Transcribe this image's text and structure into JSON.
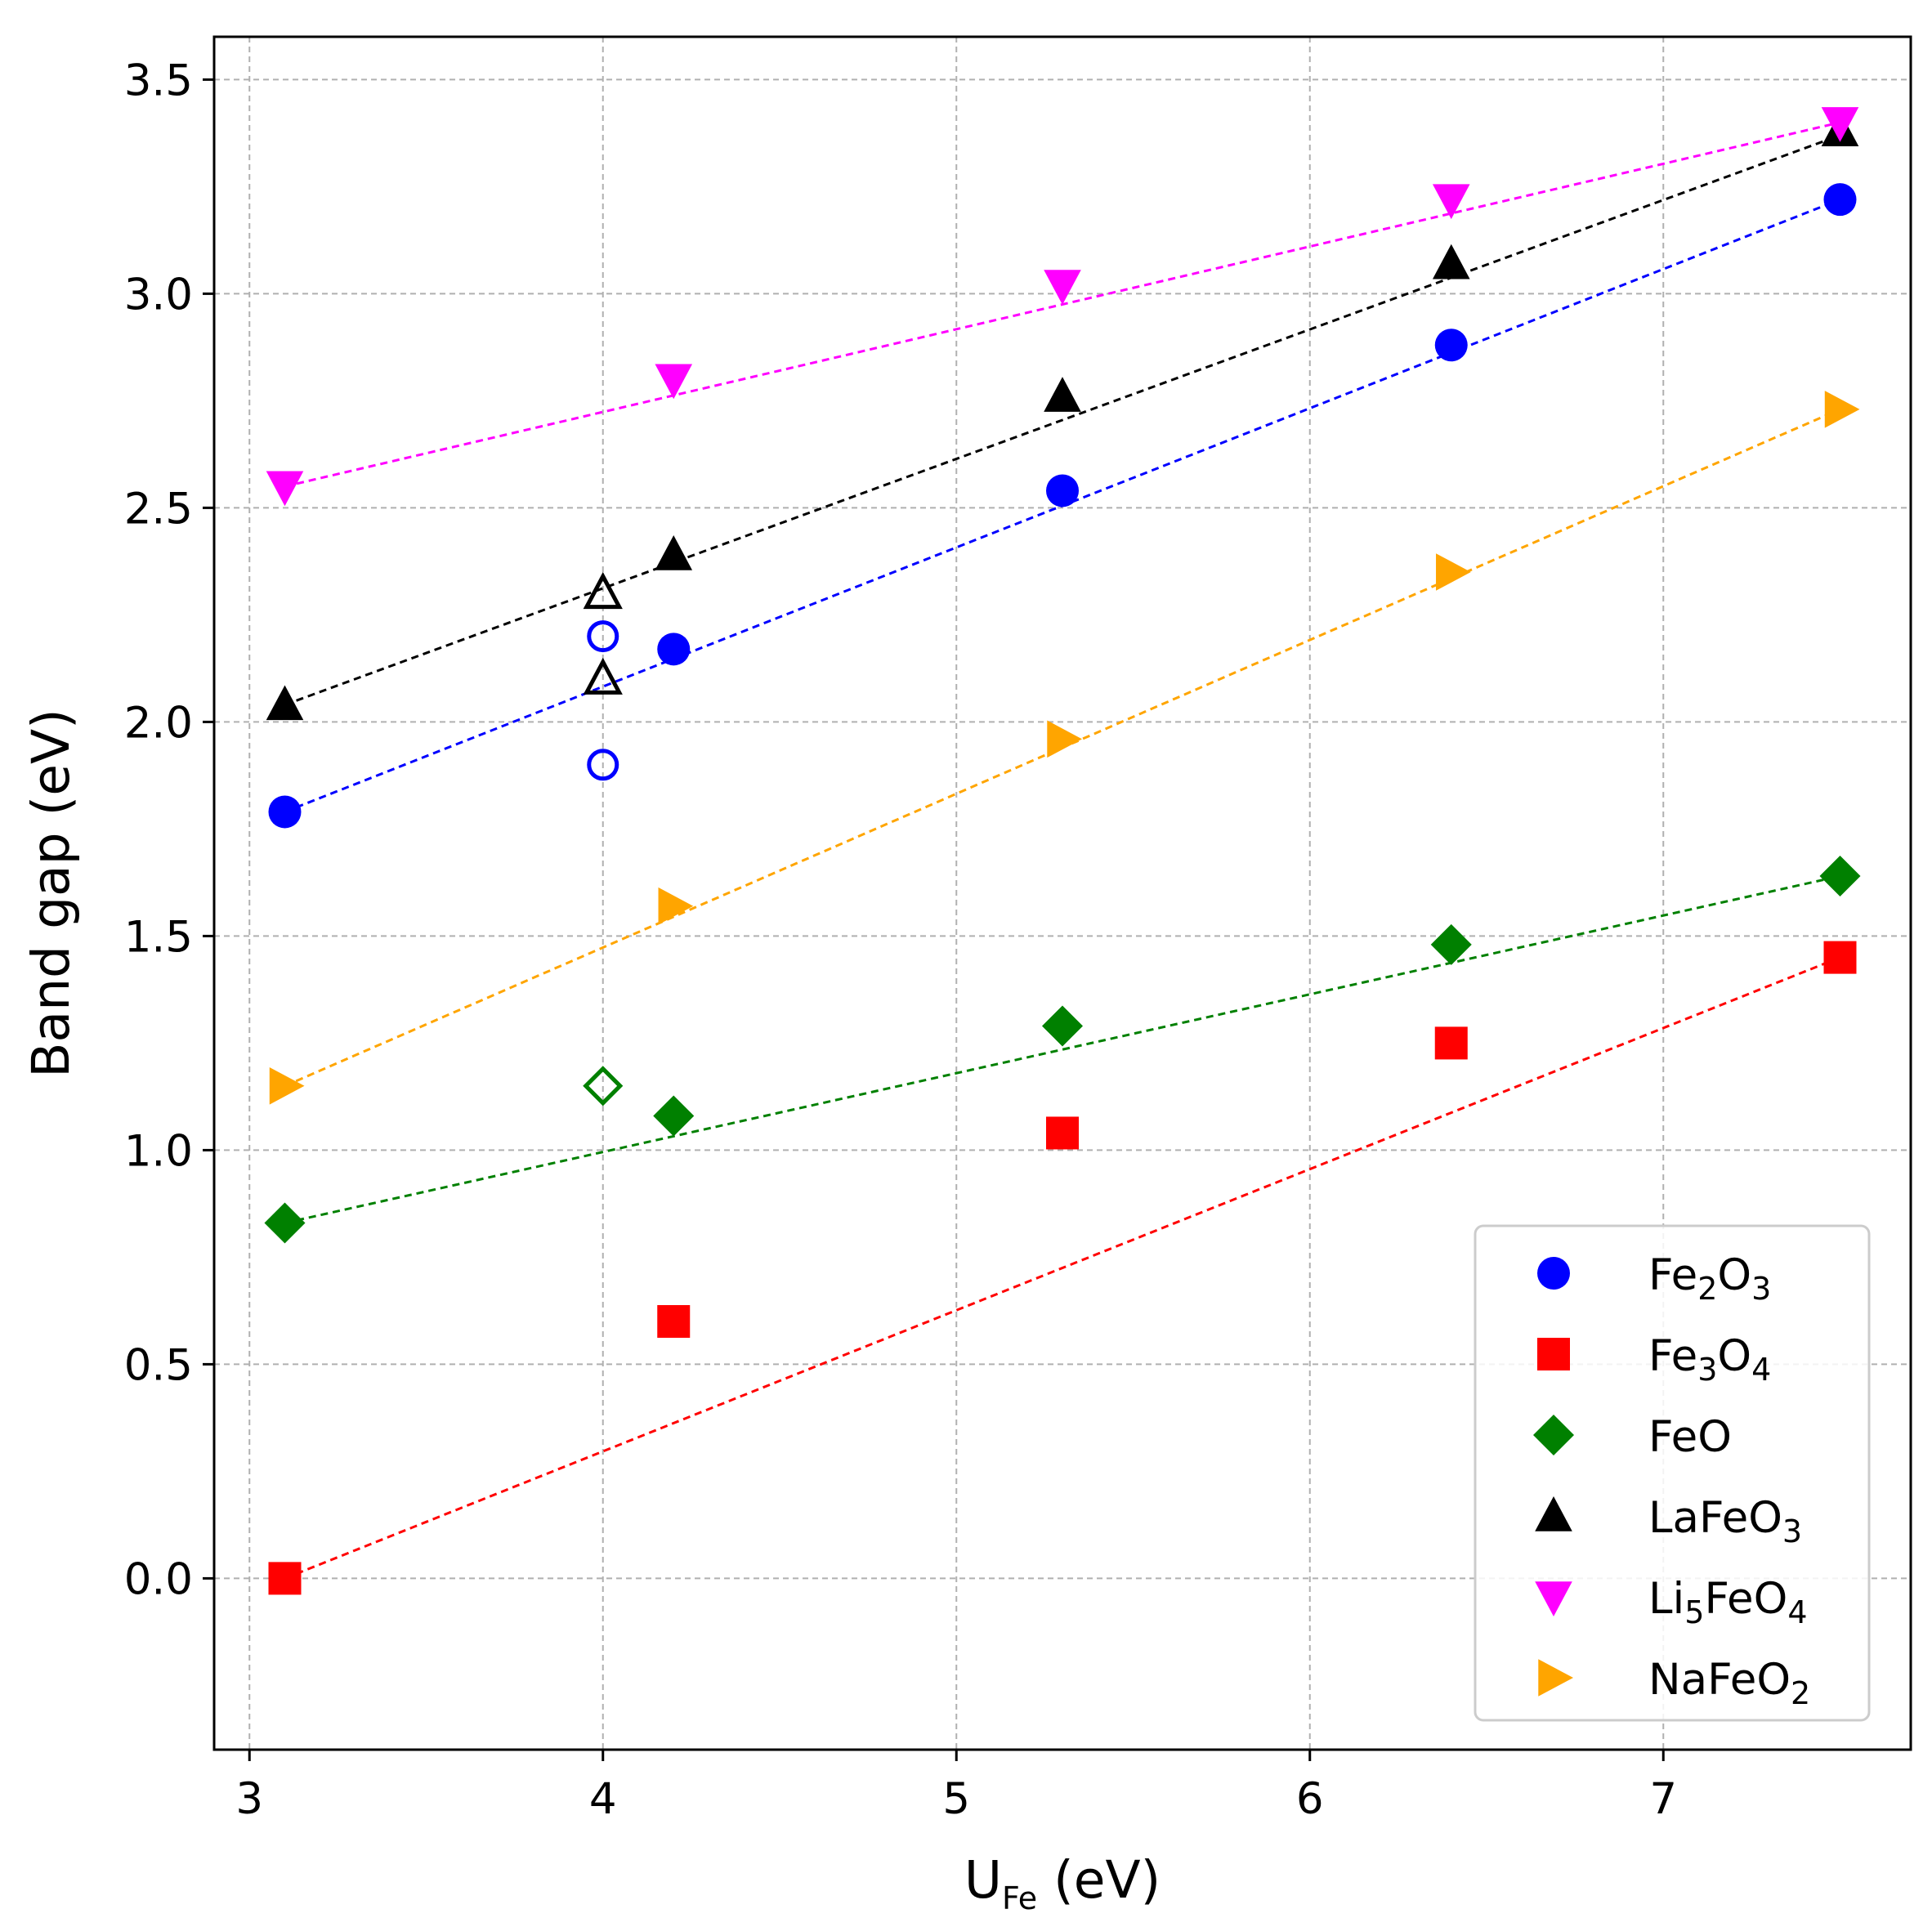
{
  "chart_data": {
    "type": "scatter",
    "title": "",
    "xlabel": {
      "main": "U",
      "sub": "Fe",
      "rest": " (eV)"
    },
    "ylabel": "Band gap (eV)",
    "xlim": [
      2.9,
      7.7
    ],
    "ylim": [
      -0.4,
      3.6
    ],
    "xticks": [
      3,
      4,
      5,
      6,
      7
    ],
    "xtick_labels": [
      "3",
      "4",
      "5",
      "6",
      "7"
    ],
    "yticks": [
      0.0,
      0.5,
      1.0,
      1.5,
      2.0,
      2.5,
      3.0,
      3.5
    ],
    "ytick_labels": [
      "0.0",
      "0.5",
      "1.0",
      "1.5",
      "2.0",
      "2.5",
      "3.0",
      "3.5"
    ],
    "grid": true,
    "legend_position": "lower-right",
    "series": [
      {
        "name": "Fe2O3",
        "label_parts": [
          [
            "Fe",
            ""
          ],
          [
            "2",
            "sub"
          ],
          [
            "O",
            ""
          ],
          [
            "3",
            "sub"
          ]
        ],
        "marker": "circle",
        "color": "#0000ff",
        "x": [
          3.1,
          4.2,
          5.3,
          6.4,
          7.5
        ],
        "y": [
          1.79,
          2.17,
          2.54,
          2.88,
          3.22
        ],
        "fit": {
          "x": [
            3.1,
            7.5
          ],
          "y": [
            1.79,
            3.22
          ]
        },
        "open_points": {
          "x": [
            4.0,
            4.0
          ],
          "y": [
            2.2,
            1.9
          ]
        }
      },
      {
        "name": "Fe3O4",
        "label_parts": [
          [
            "Fe",
            ""
          ],
          [
            "3",
            "sub"
          ],
          [
            "O",
            ""
          ],
          [
            "4",
            "sub"
          ]
        ],
        "marker": "square",
        "color": "#ff0000",
        "x": [
          3.1,
          4.2,
          5.3,
          6.4,
          7.5
        ],
        "y": [
          0.0,
          0.6,
          1.04,
          1.25,
          1.45
        ],
        "fit": {
          "x": [
            3.1,
            7.5
          ],
          "y": [
            0.0,
            1.45
          ]
        },
        "open_points": {
          "x": [],
          "y": []
        }
      },
      {
        "name": "FeO",
        "label_parts": [
          [
            "FeO",
            ""
          ]
        ],
        "marker": "diamond",
        "color": "#008000",
        "x": [
          3.1,
          4.2,
          5.3,
          6.4,
          7.5
        ],
        "y": [
          0.83,
          1.08,
          1.29,
          1.48,
          1.64
        ],
        "fit": {
          "x": [
            3.1,
            7.5
          ],
          "y": [
            0.83,
            1.64
          ]
        },
        "open_points": {
          "x": [
            4.0
          ],
          "y": [
            1.15
          ]
        }
      },
      {
        "name": "LaFeO3",
        "label_parts": [
          [
            "LaFeO",
            ""
          ],
          [
            "3",
            "sub"
          ]
        ],
        "marker": "triangle-up",
        "color": "#000000",
        "x": [
          3.1,
          4.2,
          5.3,
          6.4,
          7.5
        ],
        "y": [
          2.04,
          2.39,
          2.76,
          3.07,
          3.38
        ],
        "fit": {
          "x": [
            3.1,
            7.5
          ],
          "y": [
            2.04,
            3.37
          ]
        },
        "open_points": {
          "x": [
            4.0,
            4.0
          ],
          "y": [
            2.3,
            2.1
          ]
        }
      },
      {
        "name": "Li5FeO4",
        "label_parts": [
          [
            "Li",
            ""
          ],
          [
            "5",
            "sub"
          ],
          [
            "FeO",
            ""
          ],
          [
            "4",
            "sub"
          ]
        ],
        "marker": "triangle-down",
        "color": "#ff00ff",
        "x": [
          3.1,
          4.2,
          5.3,
          6.4,
          7.5
        ],
        "y": [
          2.55,
          2.8,
          3.02,
          3.22,
          3.4
        ],
        "fit": {
          "x": [
            3.1,
            7.5
          ],
          "y": [
            2.55,
            3.4
          ]
        },
        "open_points": {
          "x": [],
          "y": []
        }
      },
      {
        "name": "NaFeO2",
        "label_parts": [
          [
            "NaFeO",
            ""
          ],
          [
            "2",
            "sub"
          ]
        ],
        "marker": "triangle-right",
        "color": "#ffa500",
        "x": [
          3.1,
          4.2,
          5.3,
          6.4,
          7.5
        ],
        "y": [
          1.15,
          1.57,
          1.96,
          2.35,
          2.73
        ],
        "fit": {
          "x": [
            3.1,
            7.5
          ],
          "y": [
            1.15,
            2.73
          ]
        },
        "open_points": {
          "x": [],
          "y": []
        }
      }
    ]
  }
}
